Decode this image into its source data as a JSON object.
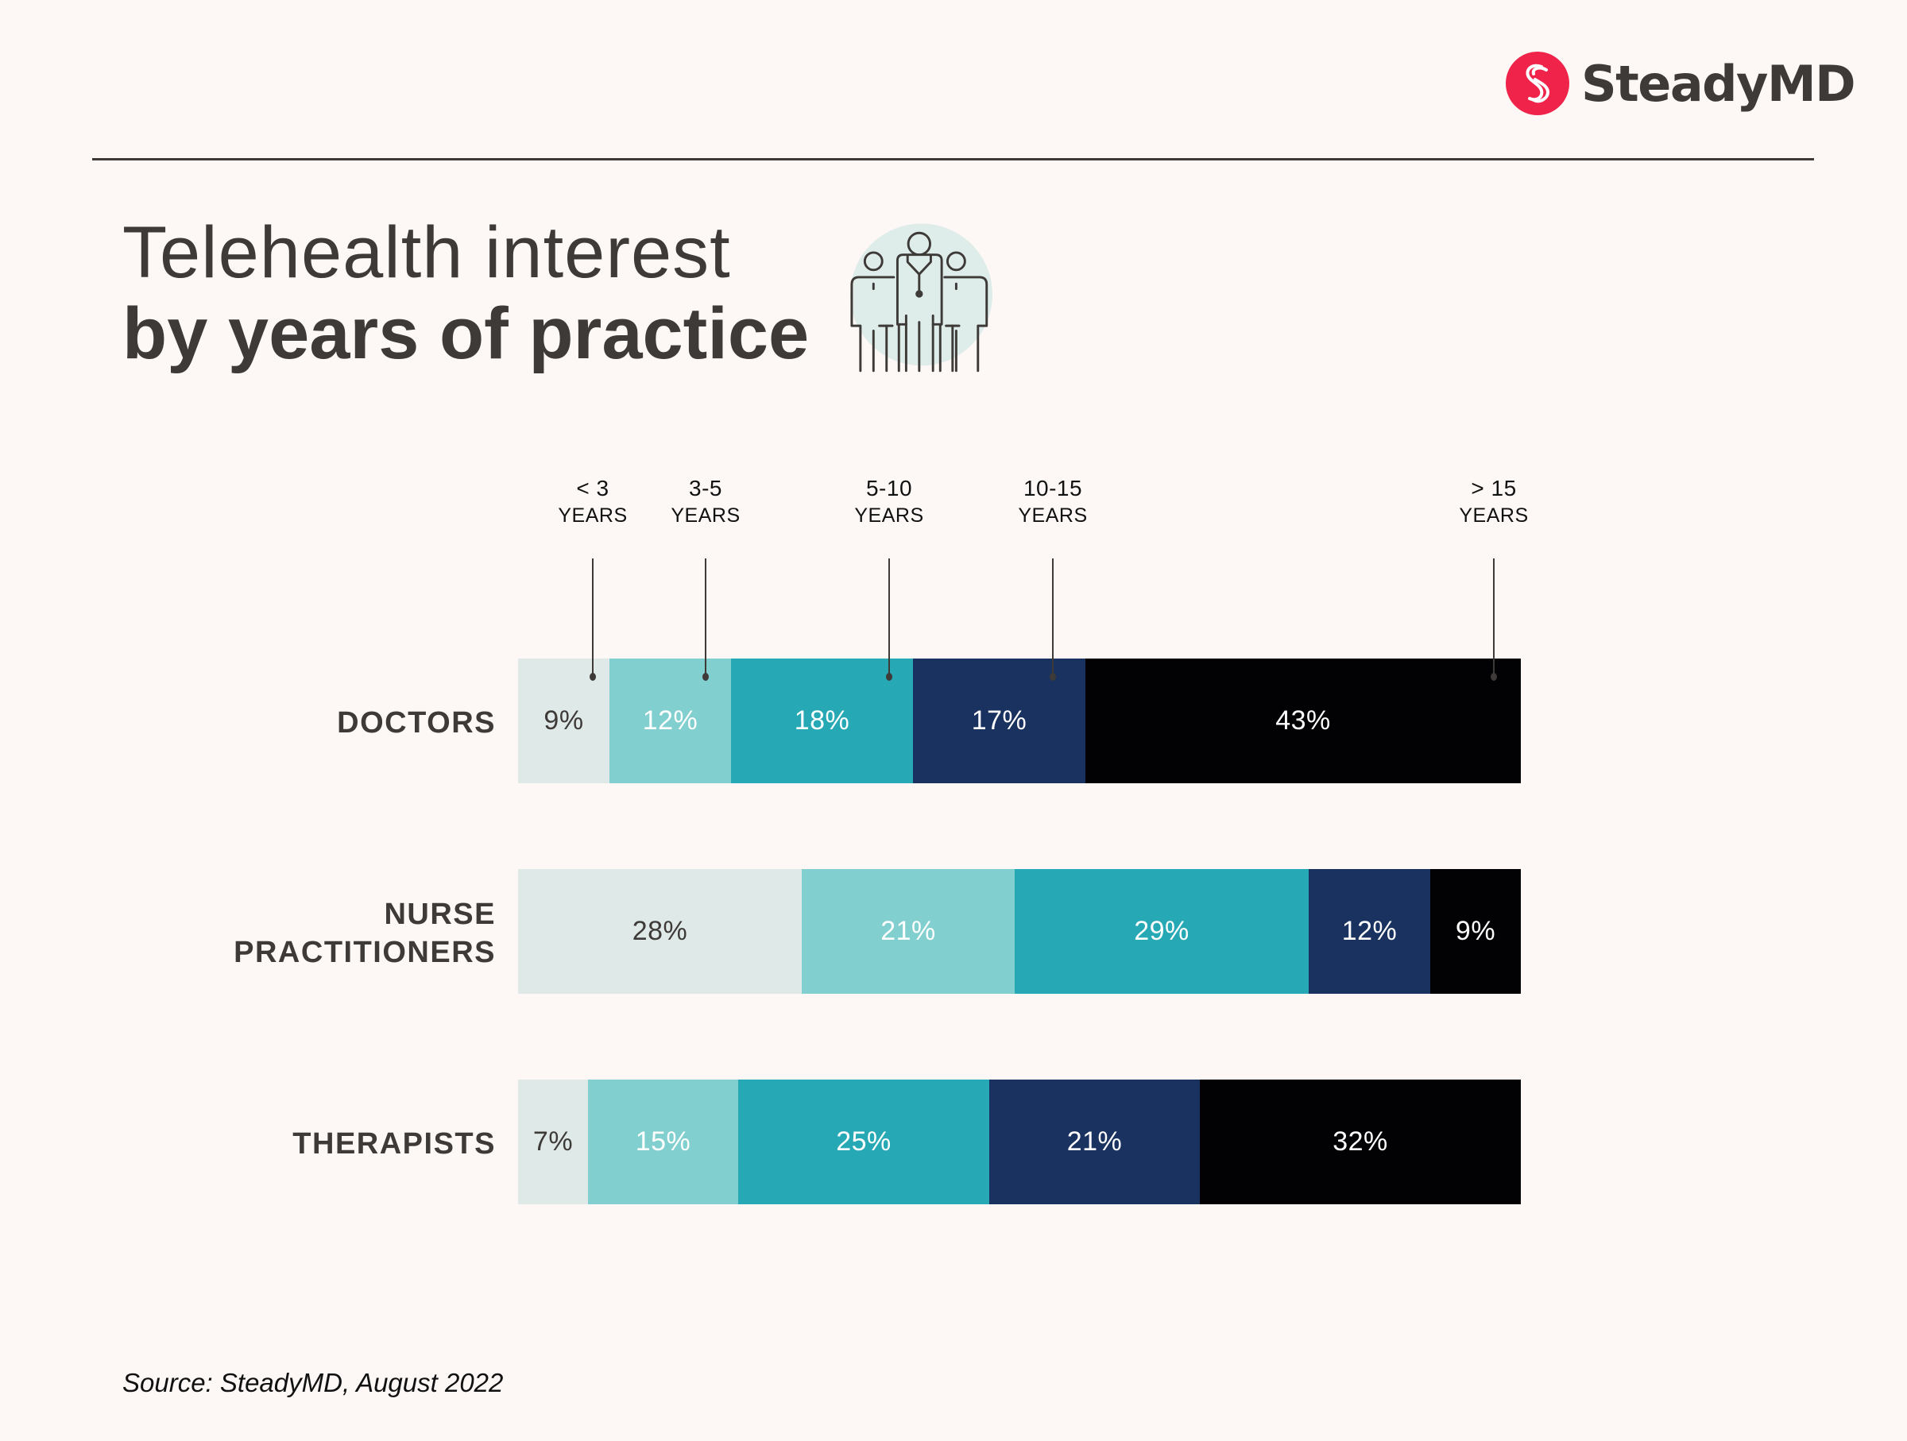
{
  "brand": {
    "name": "SteadyMD",
    "accent_color": "#f0244a",
    "logo_icon": "s-monogram-icon"
  },
  "header": {
    "title_line1": "Telehealth interest",
    "title_line2": "by years of practice",
    "illustration": "medical-team-icon"
  },
  "footer": {
    "source": "Source: SteadyMD, August 2022"
  },
  "chart_data": {
    "type": "bar",
    "orientation": "horizontal",
    "stacked": true,
    "normalized": true,
    "title": "Telehealth interest by years of practice",
    "xlabel": "",
    "ylabel": "",
    "categories": [
      "DOCTORS",
      "NURSE PRACTITIONERS",
      "THERAPISTS"
    ],
    "category_lines": [
      [
        "DOCTORS"
      ],
      [
        "NURSE",
        "PRACTITIONERS"
      ],
      [
        "THERAPISTS"
      ]
    ],
    "series": [
      {
        "name": "< 3 YEARS",
        "label_top": "< 3",
        "label_bottom": "YEARS",
        "color": "#dfeae8",
        "text_color": "#3d3a38",
        "values": [
          9,
          28,
          7
        ]
      },
      {
        "name": "3-5 YEARS",
        "label_top": "3-5",
        "label_bottom": "YEARS",
        "color": "#82cfcf",
        "text_color": "#ffffff",
        "values": [
          12,
          21,
          15
        ]
      },
      {
        "name": "5-10 YEARS",
        "label_top": "5-10",
        "label_bottom": "YEARS",
        "color": "#27a9b5",
        "text_color": "#ffffff",
        "values": [
          18,
          29,
          25
        ]
      },
      {
        "name": "10-15 YEARS",
        "label_top": "10-15",
        "label_bottom": "YEARS",
        "color": "#19325f",
        "text_color": "#ffffff",
        "values": [
          17,
          12,
          21
        ]
      },
      {
        "name": "> 15 YEARS",
        "label_top": "> 15",
        "label_bottom": "YEARS",
        "color": "#020204",
        "text_color": "#ffffff",
        "values": [
          43,
          9,
          32
        ]
      }
    ],
    "value_suffix": "%",
    "legend": "top, leader lines pointing into first row",
    "grid": false
  }
}
